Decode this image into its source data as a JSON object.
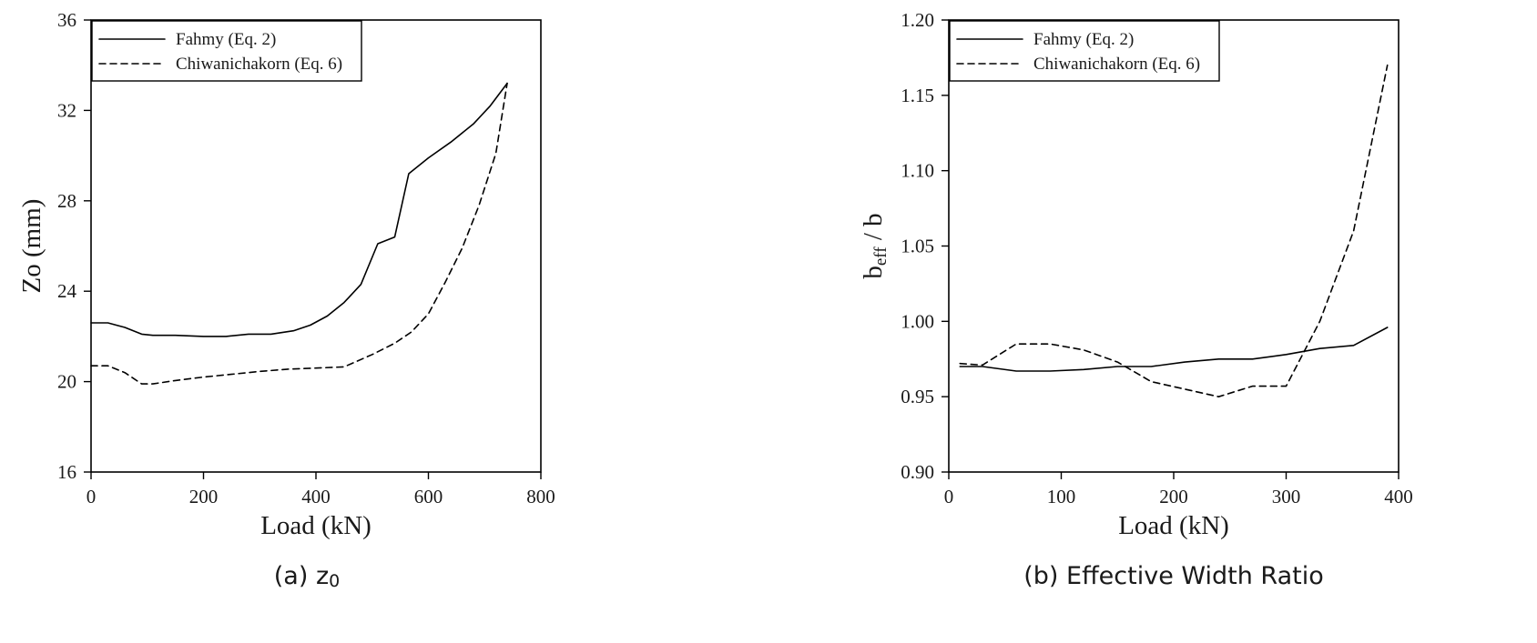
{
  "chart_data": [
    {
      "type": "line",
      "title": "",
      "caption": "(a) z",
      "caption_sub": "0",
      "xlabel": "Load (kN)",
      "ylabel": "Zo (mm)",
      "xlim": [
        0,
        800
      ],
      "ylim": [
        16,
        36
      ],
      "xticks": [
        0,
        200,
        400,
        600,
        800
      ],
      "yticks": [
        16,
        20,
        24,
        28,
        32,
        36
      ],
      "grid": false,
      "legend_placement": "top-left",
      "series": [
        {
          "name": "Fahmy (Eq. 2)",
          "style": "solid",
          "color": "#000000",
          "x": [
            0,
            30,
            60,
            90,
            110,
            150,
            200,
            240,
            280,
            320,
            360,
            390,
            420,
            450,
            480,
            510,
            540,
            565,
            600,
            640,
            680,
            710,
            740
          ],
          "y": [
            22.6,
            22.6,
            22.4,
            22.1,
            22.05,
            22.05,
            22.0,
            22.0,
            22.1,
            22.1,
            22.25,
            22.5,
            22.9,
            23.5,
            24.3,
            26.1,
            26.4,
            29.2,
            29.9,
            30.6,
            31.4,
            32.2,
            33.2
          ]
        },
        {
          "name": "Chiwanichakorn (Eq. 6)",
          "style": "dashed",
          "color": "#000000",
          "x": [
            0,
            30,
            60,
            90,
            110,
            150,
            200,
            260,
            300,
            350,
            400,
            450,
            500,
            540,
            570,
            600,
            630,
            660,
            690,
            720,
            740
          ],
          "y": [
            20.7,
            20.7,
            20.4,
            19.9,
            19.9,
            20.05,
            20.2,
            20.35,
            20.45,
            20.55,
            20.6,
            20.65,
            21.2,
            21.7,
            22.2,
            23.0,
            24.4,
            25.9,
            27.8,
            30.1,
            33.2
          ]
        }
      ]
    },
    {
      "type": "line",
      "title": "",
      "caption": "(b) Effective Width Ratio",
      "caption_sub": "",
      "xlabel": "Load (kN)",
      "ylabel_main": "b",
      "ylabel_sub": "eff",
      "ylabel_rest": " / b",
      "xlim": [
        0,
        400
      ],
      "ylim": [
        0.9,
        1.2
      ],
      "xticks": [
        0,
        100,
        200,
        300,
        400
      ],
      "yticks": [
        0.9,
        0.95,
        1.0,
        1.05,
        1.1,
        1.15,
        1.2
      ],
      "ytick_decimals": 2,
      "grid": false,
      "legend_placement": "top-left",
      "series": [
        {
          "name": "Fahmy (Eq. 2)",
          "style": "solid",
          "color": "#000000",
          "x": [
            10,
            30,
            60,
            90,
            120,
            150,
            180,
            210,
            240,
            270,
            300,
            330,
            360,
            390
          ],
          "y": [
            0.97,
            0.97,
            0.967,
            0.967,
            0.968,
            0.97,
            0.97,
            0.973,
            0.975,
            0.975,
            0.978,
            0.982,
            0.984,
            0.996
          ]
        },
        {
          "name": "Chiwanichakorn (Eq. 6)",
          "style": "dashed",
          "color": "#000000",
          "x": [
            10,
            30,
            60,
            90,
            120,
            150,
            180,
            210,
            240,
            270,
            300,
            330,
            360,
            390
          ],
          "y": [
            0.972,
            0.971,
            0.985,
            0.985,
            0.981,
            0.973,
            0.96,
            0.955,
            0.95,
            0.957,
            0.957,
            1.0,
            1.06,
            1.17
          ]
        }
      ]
    }
  ]
}
